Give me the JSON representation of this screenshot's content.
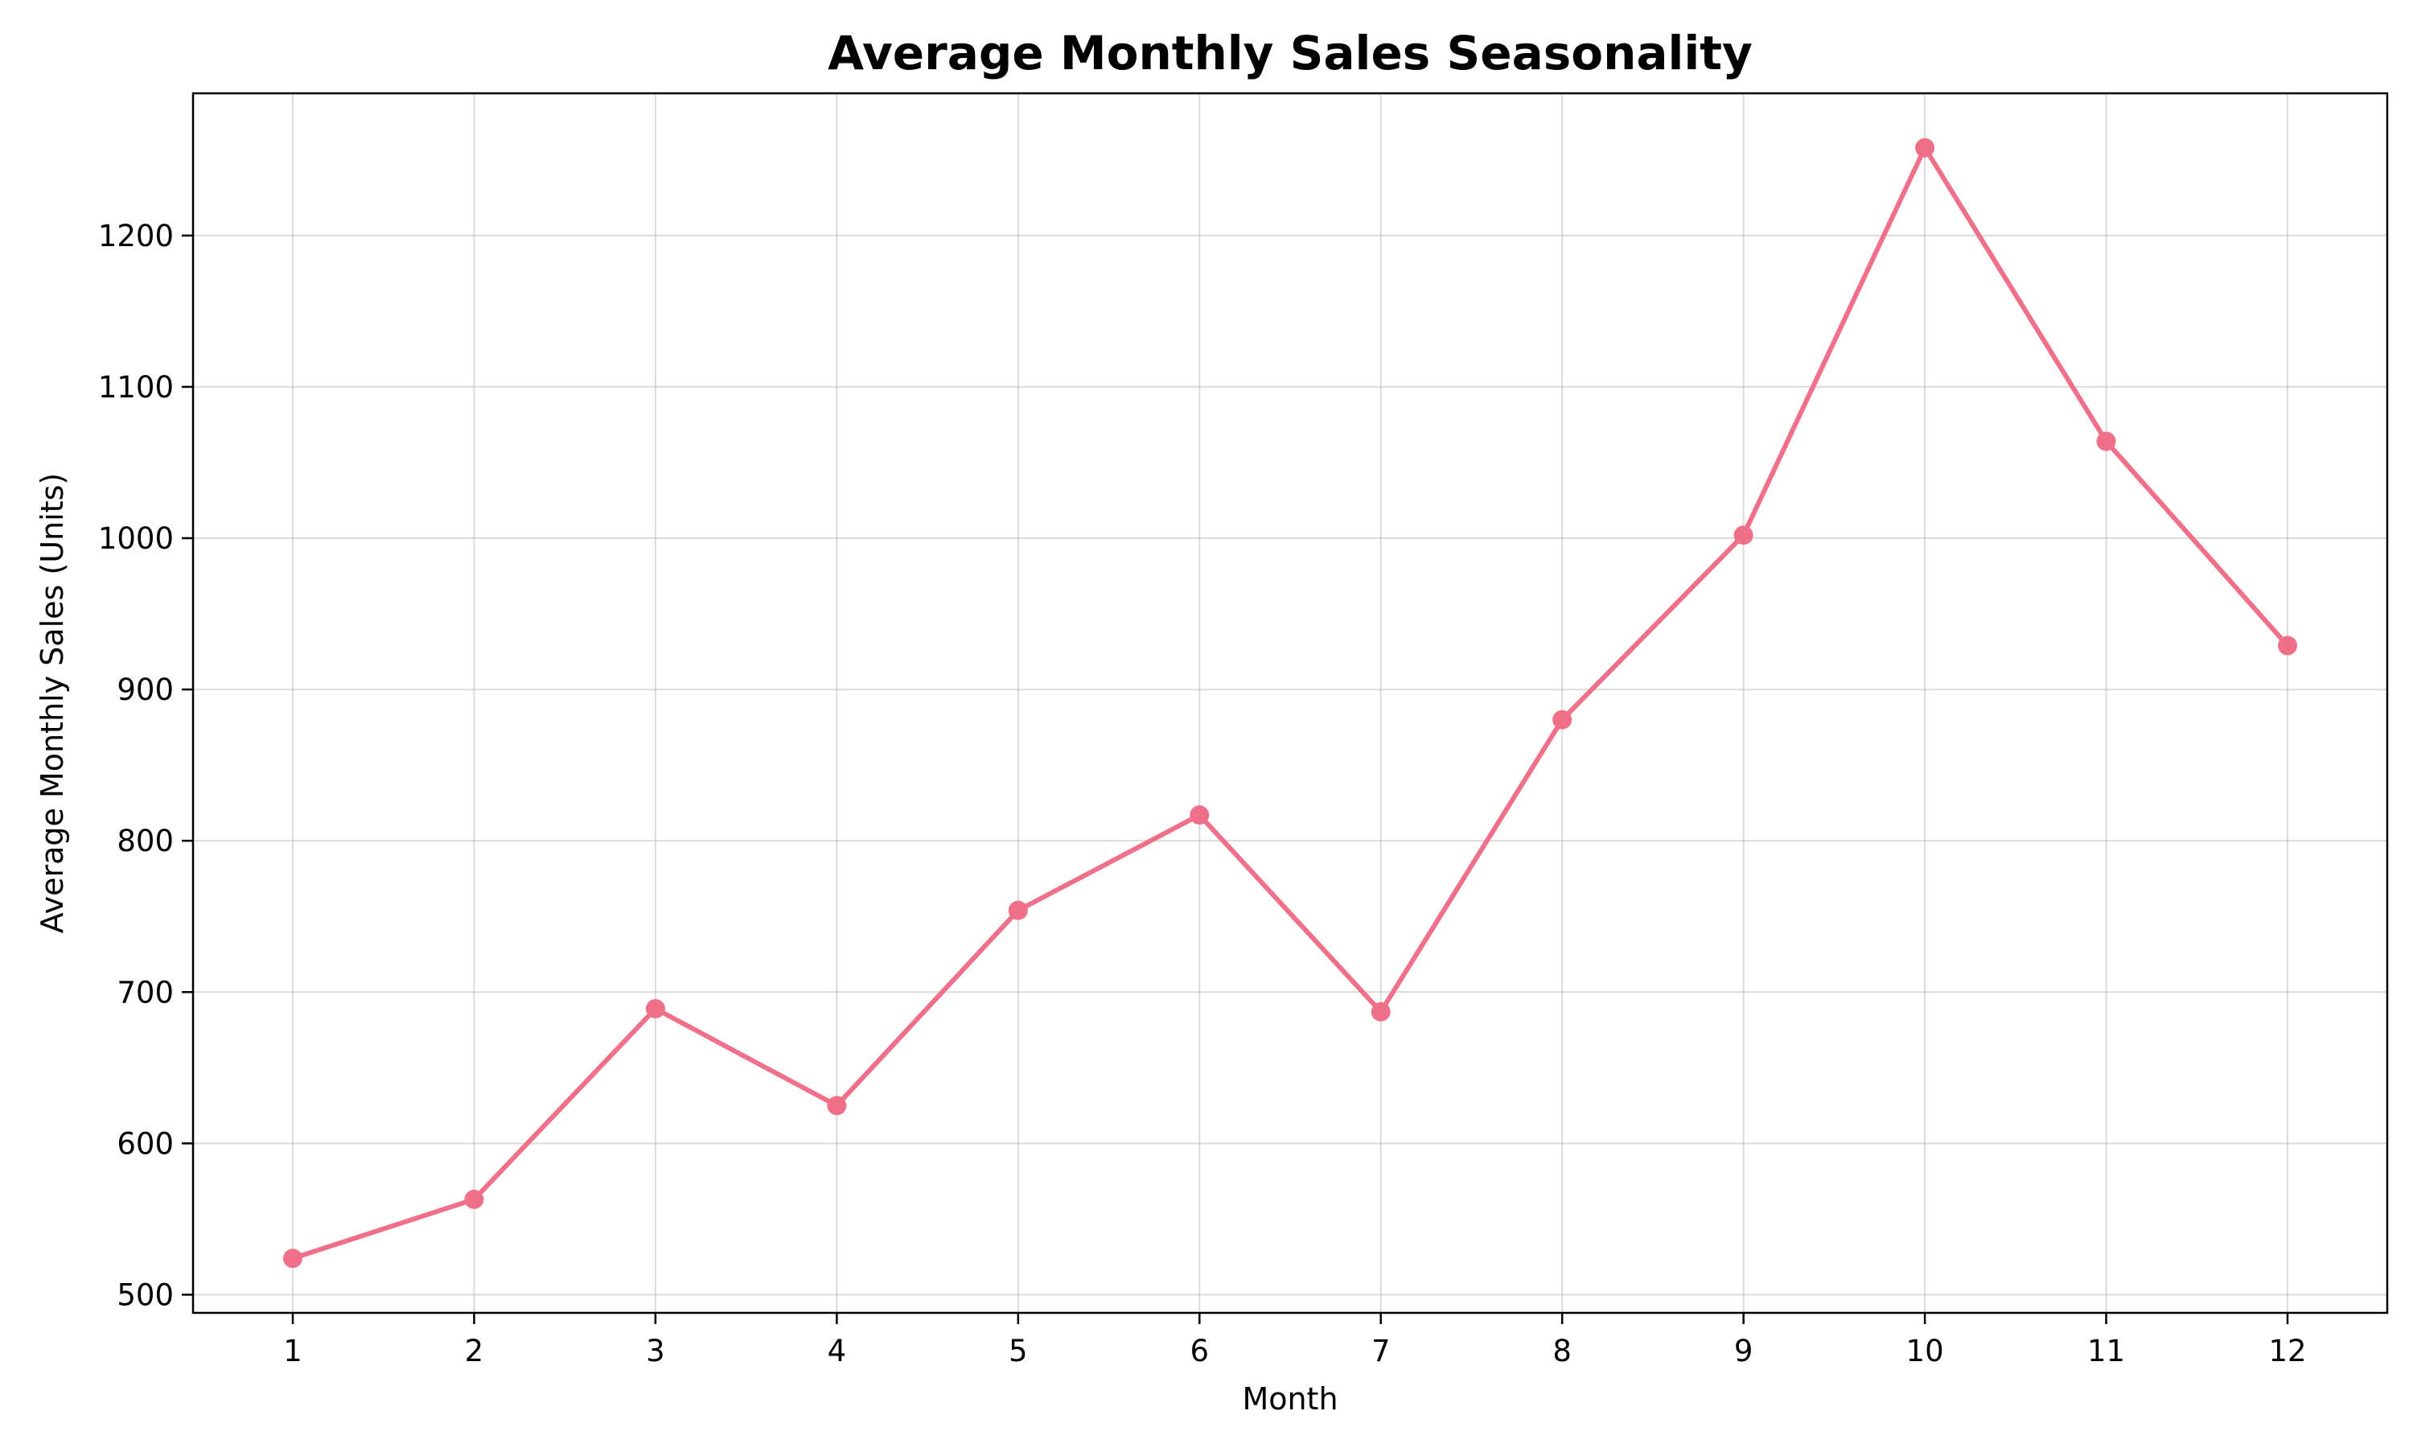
{
  "chart_data": {
    "type": "line",
    "title": "Average Monthly Sales Seasonality",
    "xlabel": "Month",
    "ylabel": "Average Monthly Sales (Units)",
    "x": [
      1,
      2,
      3,
      4,
      5,
      6,
      7,
      8,
      9,
      10,
      11,
      12
    ],
    "x_tick_labels": [
      "1",
      "2",
      "3",
      "4",
      "5",
      "6",
      "7",
      "8",
      "9",
      "10",
      "11",
      "12"
    ],
    "xlim": [
      0.45,
      12.55
    ],
    "yticks": [
      500,
      600,
      700,
      800,
      900,
      1000,
      1100,
      1200
    ],
    "y_tick_labels": [
      "500",
      "600",
      "700",
      "800",
      "900",
      "1000",
      "1100",
      "1200"
    ],
    "ylim": [
      488,
      1294
    ],
    "grid": true,
    "series": [
      {
        "values": [
          524,
          563,
          689,
          625,
          754,
          817,
          687,
          880,
          1002,
          1258,
          1064,
          929
        ],
        "color": "#f0708a",
        "marker": "circle"
      }
    ]
  }
}
